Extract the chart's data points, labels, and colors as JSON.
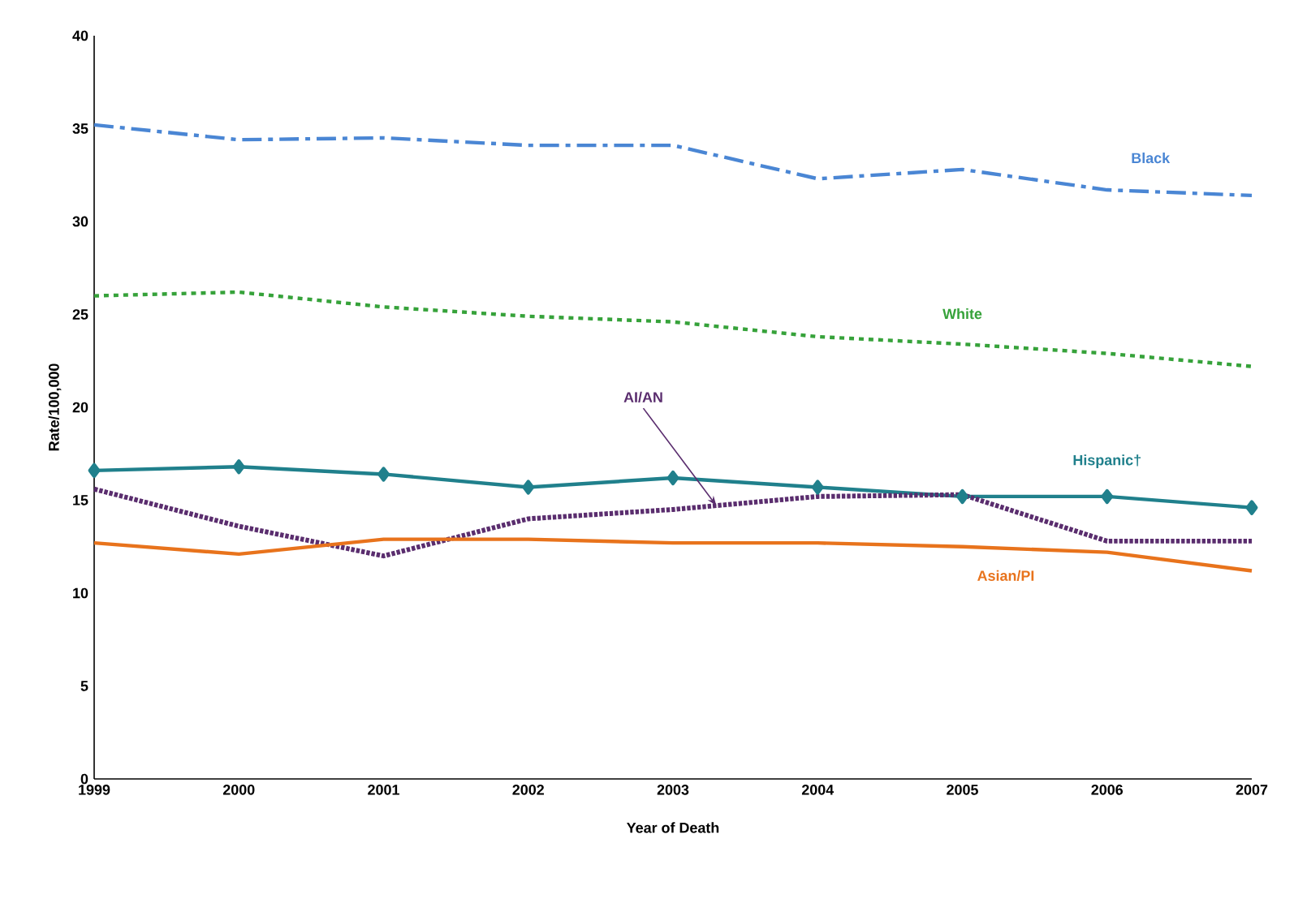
{
  "chart_data": {
    "type": "line",
    "xlabel": "Year of Death",
    "ylabel": "Rate/100,000",
    "x": [
      1999,
      2000,
      2001,
      2002,
      2003,
      2004,
      2005,
      2006,
      2007
    ],
    "xlim": [
      1999,
      2007
    ],
    "xticks": [
      1999,
      2000,
      2001,
      2002,
      2003,
      2004,
      2005,
      2006,
      2007
    ],
    "ylim": [
      0,
      40
    ],
    "yticks": [
      0,
      5,
      10,
      15,
      20,
      25,
      30,
      35,
      40
    ],
    "grid": false,
    "series": [
      {
        "name": "Black",
        "color": "#4a86d4",
        "line_style": "dashdot",
        "marker": "none",
        "values": [
          35.2,
          34.4,
          34.5,
          34.1,
          34.1,
          32.3,
          32.8,
          31.7,
          31.4
        ]
      },
      {
        "name": "White",
        "color": "#36a23a",
        "line_style": "dashed",
        "marker": "none",
        "values": [
          26.0,
          26.2,
          25.4,
          24.9,
          24.6,
          23.8,
          23.4,
          22.9,
          22.2
        ]
      },
      {
        "name": "Hispanic†",
        "color": "#20808c",
        "line_style": "solid",
        "marker": "diamond",
        "values": [
          16.6,
          16.8,
          16.4,
          15.7,
          16.2,
          15.7,
          15.2,
          15.2,
          14.6
        ]
      },
      {
        "name": "AI/AN",
        "color": "#5a2d6e",
        "line_style": "dotted",
        "marker": "none",
        "values": [
          15.6,
          13.6,
          12.0,
          14.0,
          14.5,
          15.2,
          15.3,
          12.8,
          12.8
        ]
      },
      {
        "name": "Asian/PI",
        "color": "#e8731c",
        "line_style": "solid",
        "marker": "none",
        "values": [
          12.7,
          12.1,
          12.9,
          12.9,
          12.7,
          12.7,
          12.5,
          12.2,
          11.2
        ]
      }
    ]
  }
}
